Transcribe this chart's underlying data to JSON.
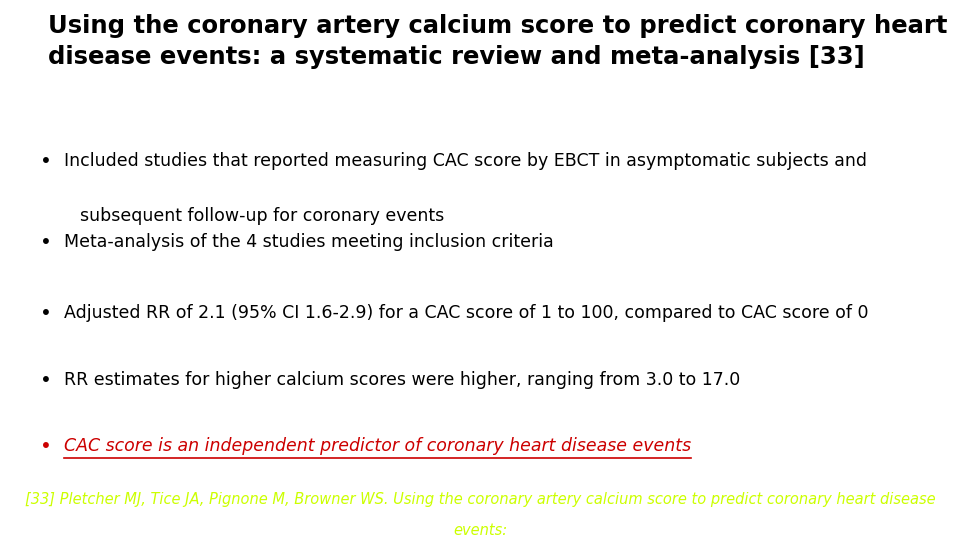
{
  "title_line1": "Using the coronary artery calcium score to predict coronary heart",
  "title_line2": "disease events: a systematic review and meta-analysis [33]",
  "bullets": [
    {
      "text": "Included studies that reported measuring CAC score by EBCT in asymptomatic subjects and",
      "text2": "subsequent follow-up for coronary events",
      "color": "#000000",
      "italic": false,
      "underline": false
    },
    {
      "text": "Meta-analysis of the 4 studies meeting inclusion criteria",
      "text2": "",
      "color": "#000000",
      "italic": false,
      "underline": false
    },
    {
      "text": "Adjusted RR of 2.1 (95% CI 1.6-2.9) for a CAC score of 1 to 100, compared to CAC score of 0",
      "text2": "",
      "color": "#000000",
      "italic": false,
      "underline": false
    },
    {
      "text": "RR estimates for higher calcium scores were higher, ranging from 3.0 to 17.0",
      "text2": "",
      "color": "#000000",
      "italic": false,
      "underline": false
    },
    {
      "text": "CAC score is an independent predictor of coronary heart disease events",
      "text2": "",
      "color": "#cc0000",
      "italic": true,
      "underline": true
    }
  ],
  "footer_line1": "[33] Pletcher MJ, Tice JA, Pignone M, Browner WS. Using the coronary artery calcium score to predict coronary heart disease",
  "footer_line2": "events:",
  "footer_color": "#ccff00",
  "footer_bg": "#1a3558",
  "bg_color": "#ffffff",
  "title_fontsize": 17.5,
  "bullet_fontsize": 12.5,
  "footer_fontsize": 10.5
}
